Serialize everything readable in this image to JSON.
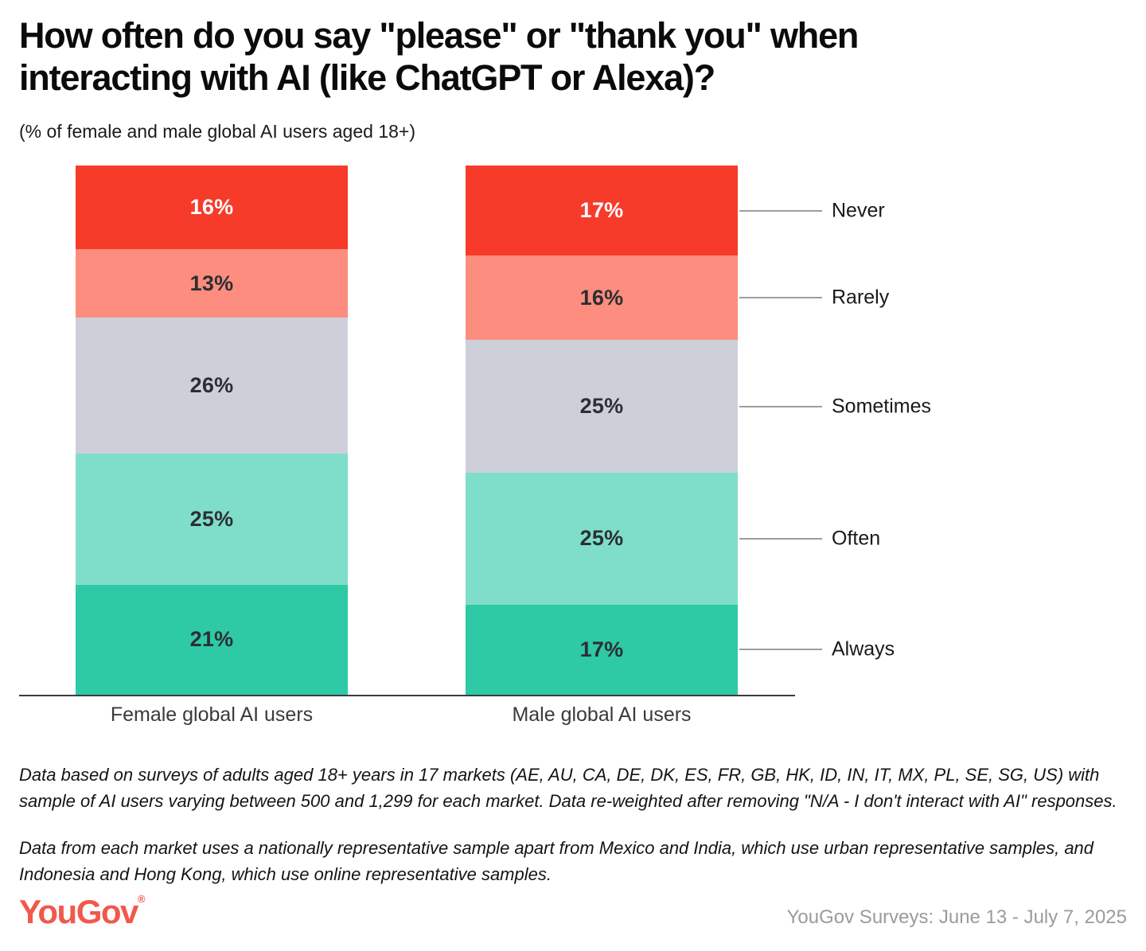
{
  "header": {
    "title_lines": [
      "How often do you say \"please\" or \"thank you\" when",
      "interacting with AI (like ChatGPT or Alexa)?"
    ],
    "subtitle": "(% of female and male global AI users aged 18+)"
  },
  "chart_data": {
    "type": "bar",
    "stacked": true,
    "orientation": "vertical",
    "title": "How often do you say \"please\" or \"thank you\" when interacting with AI (like ChatGPT or Alexa)?",
    "subtitle": "(% of female and male global AI users aged 18+)",
    "unit": "%",
    "grid": false,
    "legend_position": "right-leader-lines",
    "segment_order_top_to_bottom": [
      "Never",
      "Rarely",
      "Sometimes",
      "Often",
      "Always"
    ],
    "categories": [
      "Female global AI users",
      "Male global AI users"
    ],
    "series": [
      {
        "name": "Never",
        "values": [
          16,
          17
        ],
        "color": "#F73B2A",
        "value_label_color": "#FFFFFF"
      },
      {
        "name": "Rarely",
        "values": [
          13,
          16
        ],
        "color": "#FD8D7E",
        "value_label_color": "#2B2F33"
      },
      {
        "name": "Sometimes",
        "values": [
          26,
          25
        ],
        "color": "#CDD0D9",
        "value_label_color": "#2B2F33"
      },
      {
        "name": "Often",
        "values": [
          25,
          25
        ],
        "color": "#7FDEC9",
        "value_label_color": "#2B2F33"
      },
      {
        "name": "Always",
        "values": [
          21,
          17
        ],
        "color": "#2EC9A5",
        "value_label_color": "#2B2F33"
      }
    ]
  },
  "footer": {
    "note1": "Data based on surveys of adults aged 18+ years in 17 markets (AE, AU, CA, DE, DK, ES, FR, GB, HK, ID, IN, IT, MX, PL, SE, SG, US) with sample of AI users varying between 500 and 1,299 for each market. Data re-weighted after removing \"N/A - I don't interact with AI\" responses.",
    "note2": "Data from each market uses a nationally representative sample apart from Mexico and India, which use urban representative samples, and Indonesia and Hong Kong, which use online representative samples.",
    "logo_text": "YouGov",
    "logo_reg": "®",
    "logo_color": "#F0594B",
    "source": "YouGov Surveys: June 13 - July 7, 2025"
  }
}
